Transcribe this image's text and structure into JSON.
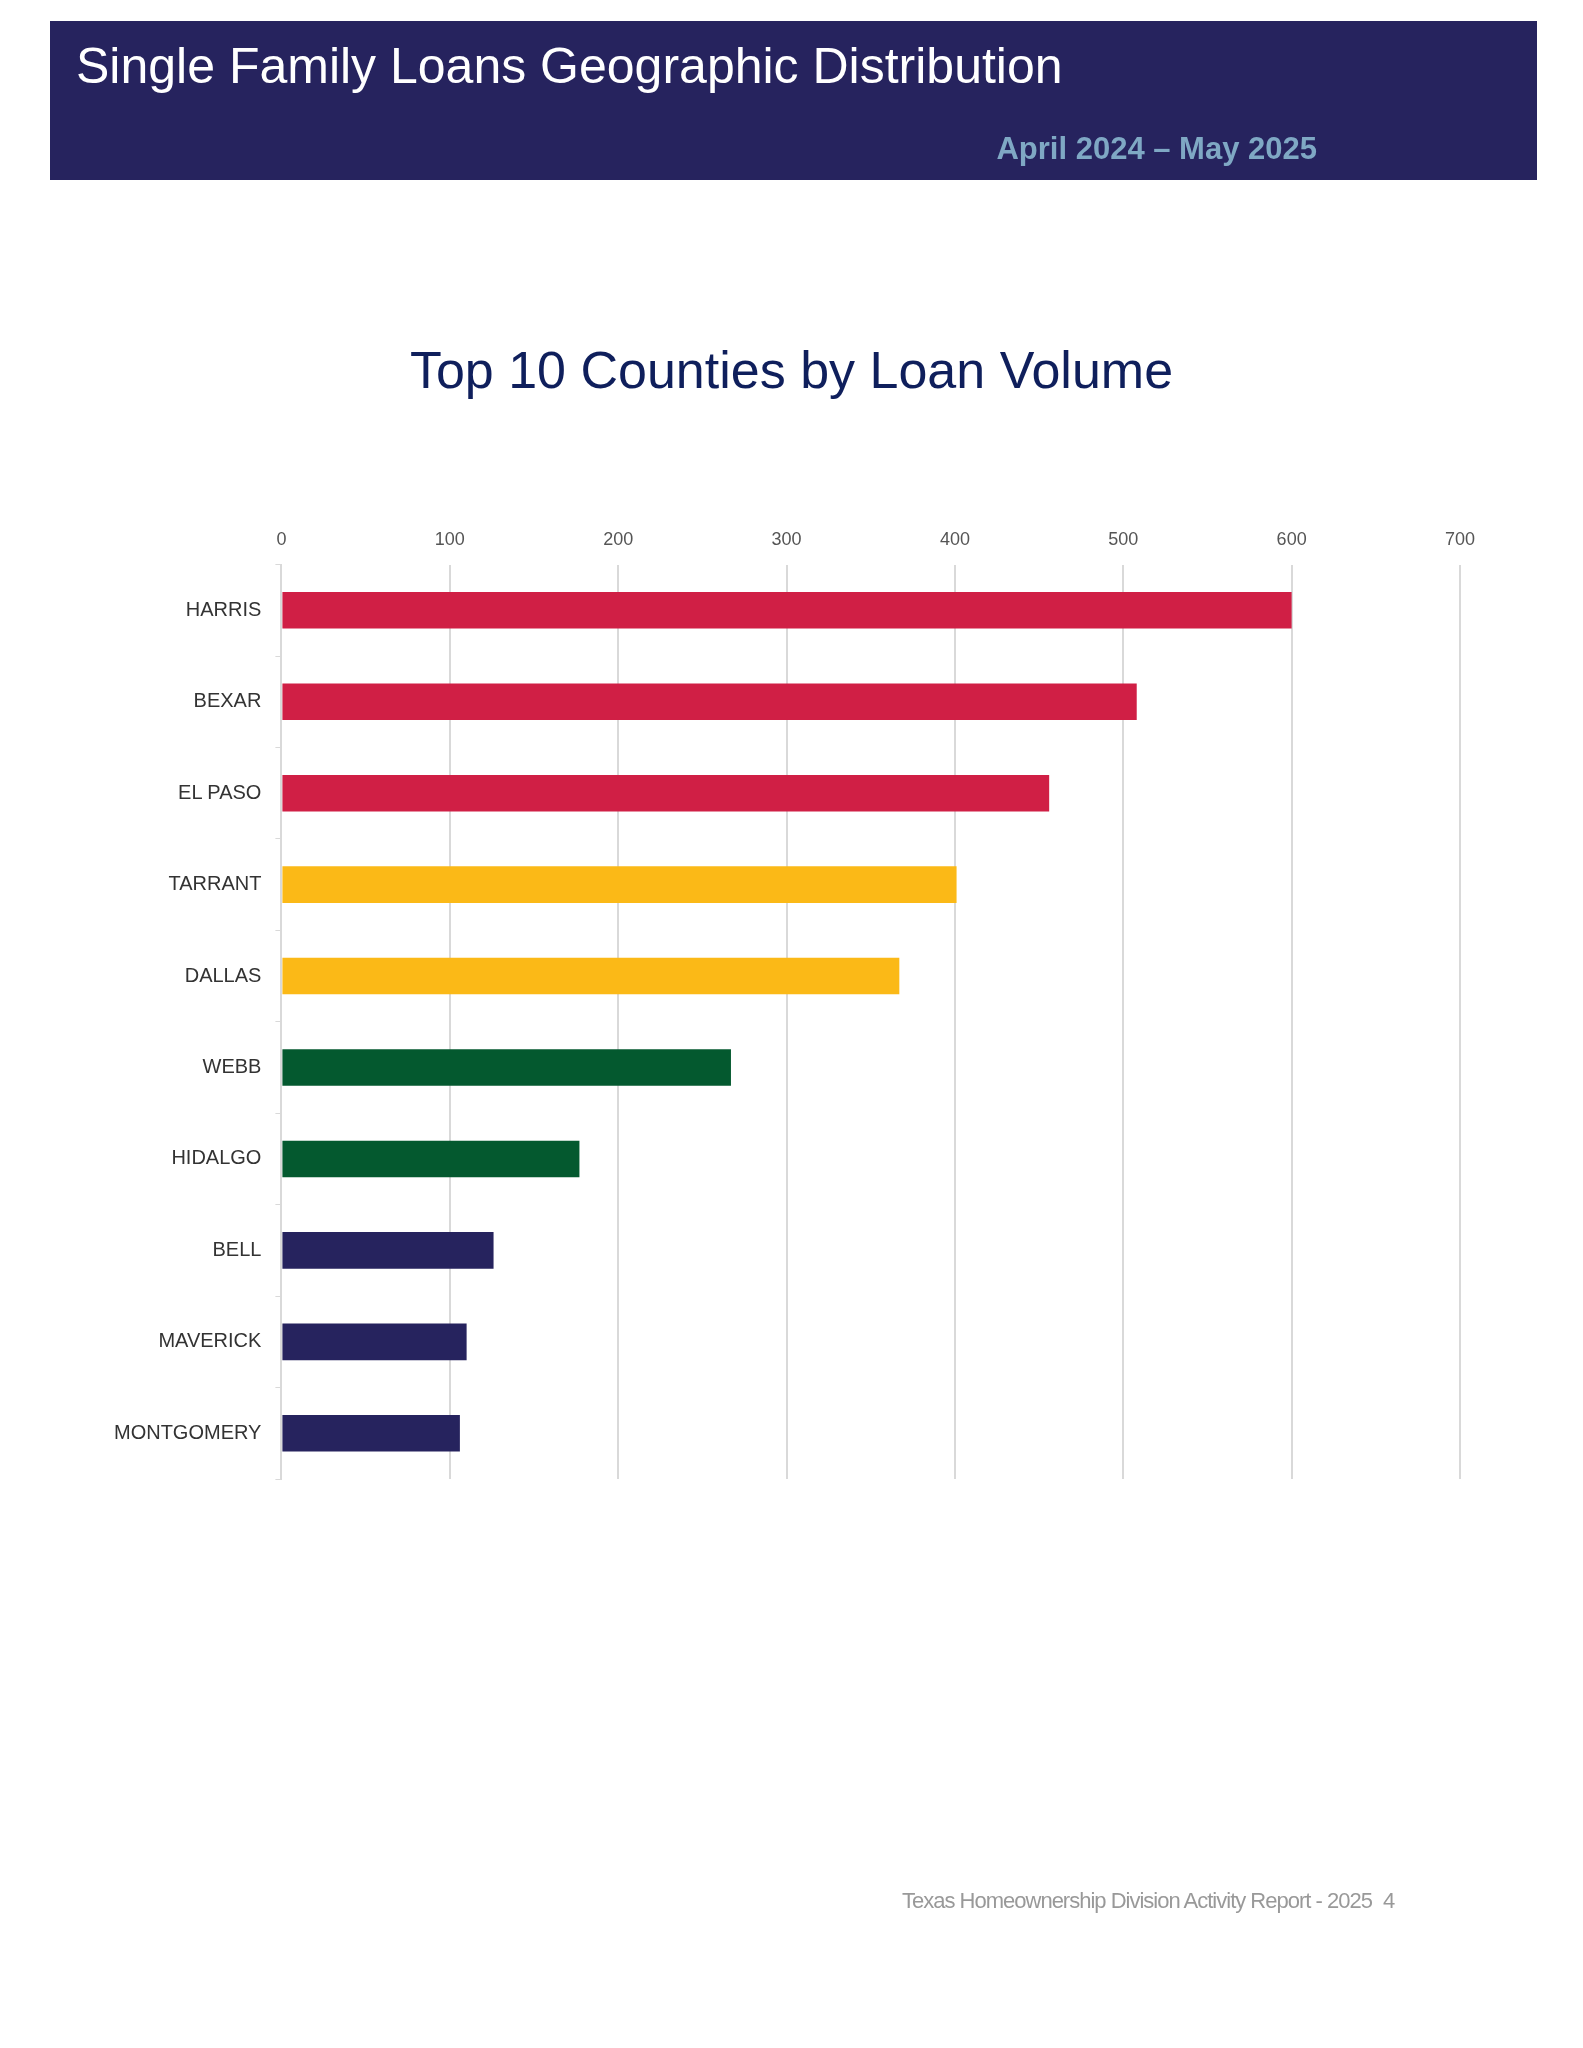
{
  "chart_data": {
    "type": "bar",
    "orientation": "horizontal",
    "title": "Top 10 Counties by Loan Volume",
    "annotations": [
      "Single Family Loans Geographic Distribution",
      "April  2024 – May  2025",
      "Texas Homeownership Division Activity Report - 2025",
      "4"
    ],
    "categories": [
      "HARRIS",
      "BEXAR",
      "EL PASO",
      "TARRANT",
      "DALLAS",
      "WEBB",
      "HIDALGO",
      "BELL",
      "MAVERICK",
      "MONTGOMERY"
    ],
    "values": [
      600,
      508,
      456,
      401,
      367,
      267,
      177,
      126,
      110,
      106
    ],
    "colors": [
      "#d01f45",
      "#d01f45",
      "#d01f45",
      "#fbb917",
      "#fbb917",
      "#04592f",
      "#04592f",
      "#26235e",
      "#26235e",
      "#26235e"
    ],
    "xlim": [
      0,
      700
    ],
    "xticks": [
      0,
      100,
      200,
      300,
      400,
      500,
      600,
      700
    ],
    "grid": "x"
  }
}
